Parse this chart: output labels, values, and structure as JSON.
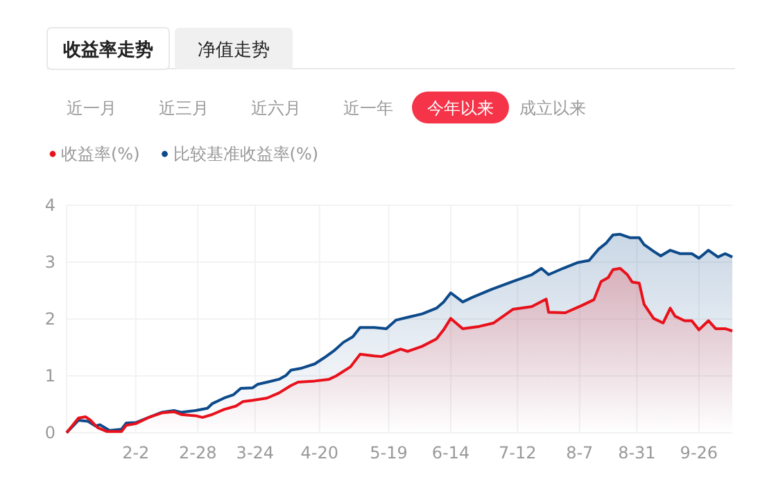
{
  "chart_data": {
    "type": "area",
    "annotations": [
      "收益率走势",
      "净值走势",
      "近一月",
      "近三月",
      "近六月",
      "近一年",
      "今年以来",
      "成立以来"
    ],
    "xlim": [
      "--01-04",
      "--10-10"
    ],
    "xticks": [
      {
        "value": "--02-02",
        "label": "2-2"
      },
      {
        "value": "--02-28",
        "label": "2-28"
      },
      {
        "value": "--03-24",
        "label": "3-24"
      },
      {
        "value": "--04-20",
        "label": "4-20"
      },
      {
        "value": "--05-19",
        "label": "5-19"
      },
      {
        "value": "--06-14",
        "label": "6-14"
      },
      {
        "value": "--07-12",
        "label": "7-12"
      },
      {
        "value": "--08-07",
        "label": "8-7"
      },
      {
        "value": "--08-31",
        "label": "8-31"
      },
      {
        "value": "--09-26",
        "label": "9-26"
      }
    ],
    "ylim": [
      0,
      4
    ],
    "yticks": [
      0,
      1,
      2,
      3,
      4
    ],
    "grid": true,
    "legend": "top left",
    "marker": "none",
    "line_style": "solid",
    "series": [
      {
        "name": "收益率(%)",
        "color": "#e8111b",
        "x": [
          "--01-04",
          "--01-09",
          "--01-12",
          "--01-14",
          "--01-17",
          "--01-21",
          "--01-27",
          "--01-29",
          "--02-02",
          "--02-08",
          "--02-13",
          "--02-18",
          "--02-21",
          "--02-27",
          "--03-02",
          "--03-06",
          "--03-11",
          "--03-16",
          "--03-19",
          "--03-23",
          "--03-29",
          "--04-03",
          "--04-08",
          "--04-11",
          "--04-18",
          "--04-24",
          "--04-27",
          "--05-03",
          "--05-07",
          "--05-13",
          "--05-16",
          "--05-24",
          "--05-27",
          "--06-02",
          "--06-08",
          "--06-11",
          "--06-14",
          "--06-19",
          "--06-26",
          "--07-02",
          "--07-10",
          "--07-18",
          "--07-24",
          "--07-25",
          "--08-01",
          "--08-08",
          "--08-13",
          "--08-16",
          "--08-19",
          "--08-21",
          "--08-24",
          "--08-27",
          "--08-29",
          "--09-01",
          "--09-03",
          "--09-07",
          "--09-11",
          "--09-14",
          "--09-16",
          "--09-20",
          "--09-23",
          "--09-26",
          "--09-30",
          "--10-03",
          "--10-07",
          "--10-10"
        ],
        "values": [
          0,
          0.26,
          0.28,
          0.22,
          0.09,
          0.02,
          0.02,
          0.13,
          0.16,
          0.28,
          0.35,
          0.37,
          0.32,
          0.3,
          0.27,
          0.32,
          0.41,
          0.47,
          0.55,
          0.57,
          0.61,
          0.7,
          0.83,
          0.89,
          0.91,
          0.94,
          1.0,
          1.16,
          1.38,
          1.35,
          1.34,
          1.47,
          1.43,
          1.52,
          1.65,
          1.81,
          2.01,
          1.83,
          1.87,
          1.93,
          2.17,
          2.22,
          2.35,
          2.12,
          2.11,
          2.24,
          2.34,
          2.66,
          2.73,
          2.87,
          2.89,
          2.78,
          2.65,
          2.63,
          2.26,
          2.01,
          1.93,
          2.19,
          2.05,
          1.97,
          1.97,
          1.81,
          1.97,
          1.83,
          1.83,
          1.79
        ]
      },
      {
        "name": "比较基准收益率(%)",
        "color": "#0d4a8a",
        "x": [
          "--01-04",
          "--01-09",
          "--01-13",
          "--01-16",
          "--01-18",
          "--01-22",
          "--01-27",
          "--01-29",
          "--02-02",
          "--02-08",
          "--02-13",
          "--02-18",
          "--02-21",
          "--02-27",
          "--03-04",
          "--03-06",
          "--03-11",
          "--03-15",
          "--03-18",
          "--03-23",
          "--03-25",
          "--03-30",
          "--04-03",
          "--04-06",
          "--04-08",
          "--04-12",
          "--04-18",
          "--04-22",
          "--04-26",
          "--04-30",
          "--05-04",
          "--05-07",
          "--05-13",
          "--05-18",
          "--05-22",
          "--05-27",
          "--06-02",
          "--06-08",
          "--06-11",
          "--06-14",
          "--06-19",
          "--06-23",
          "--07-01",
          "--07-10",
          "--07-18",
          "--07-22",
          "--07-25",
          "--07-31",
          "--08-06",
          "--08-11",
          "--08-15",
          "--08-18",
          "--08-21",
          "--08-24",
          "--08-28",
          "--09-01",
          "--09-03",
          "--09-07",
          "--09-10",
          "--09-14",
          "--09-18",
          "--09-23",
          "--09-26",
          "--09-30",
          "--10-04",
          "--10-07",
          "--10-10"
        ],
        "values": [
          0,
          0.22,
          0.2,
          0.12,
          0.14,
          0.04,
          0.06,
          0.17,
          0.18,
          0.28,
          0.36,
          0.39,
          0.36,
          0.39,
          0.43,
          0.51,
          0.61,
          0.67,
          0.78,
          0.79,
          0.85,
          0.9,
          0.94,
          1.01,
          1.1,
          1.13,
          1.21,
          1.32,
          1.44,
          1.59,
          1.69,
          1.85,
          1.85,
          1.83,
          1.98,
          2.03,
          2.09,
          2.19,
          2.3,
          2.46,
          2.3,
          2.38,
          2.52,
          2.66,
          2.78,
          2.89,
          2.78,
          2.89,
          2.99,
          3.03,
          3.23,
          3.33,
          3.48,
          3.49,
          3.43,
          3.43,
          3.31,
          3.19,
          3.11,
          3.21,
          3.15,
          3.15,
          3.07,
          3.21,
          3.09,
          3.15,
          3.09
        ]
      }
    ]
  }
}
